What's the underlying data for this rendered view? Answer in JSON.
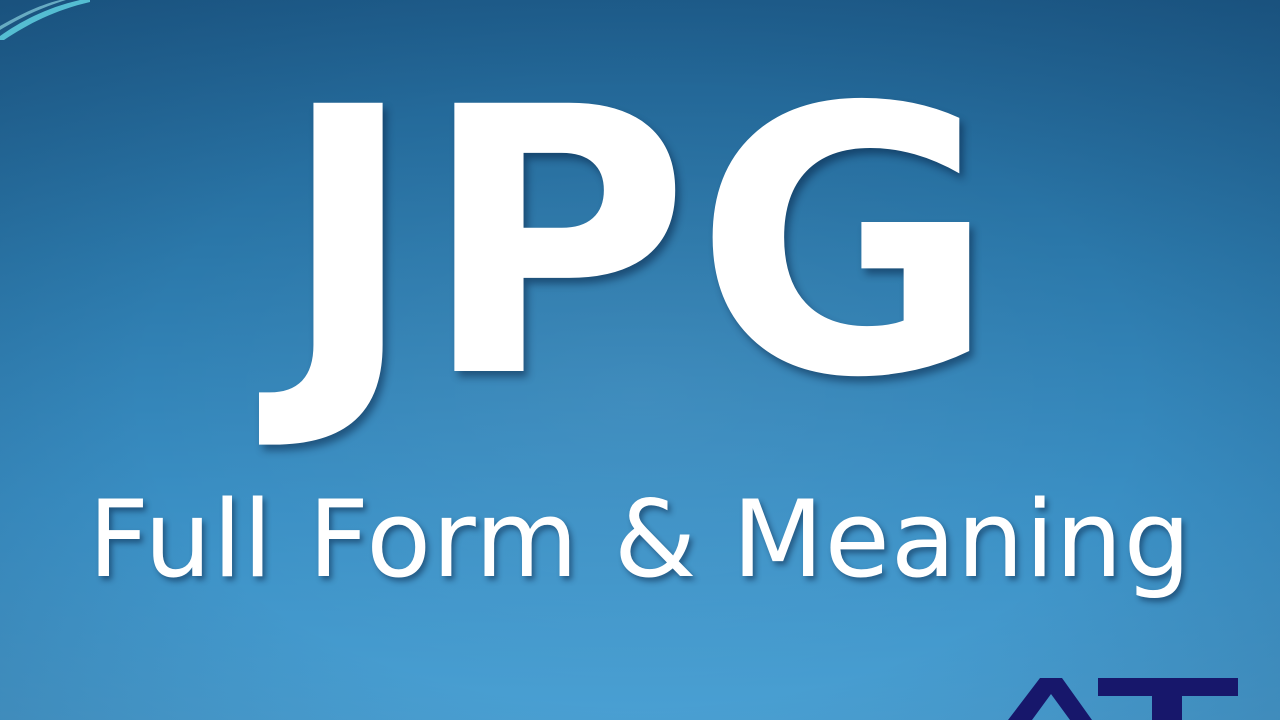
{
  "slide": {
    "title": "JPG",
    "subtitle": "Full Form & Meaning"
  },
  "colors": {
    "background_top": "#1f5f8e",
    "background_bottom": "#4aa0d3",
    "text": "#ffffff",
    "logo": "#17176b",
    "swoosh": "#5fd0e0"
  },
  "icons": {
    "corner": "corner-swoosh-icon",
    "logo": "brand-logo-icon"
  }
}
